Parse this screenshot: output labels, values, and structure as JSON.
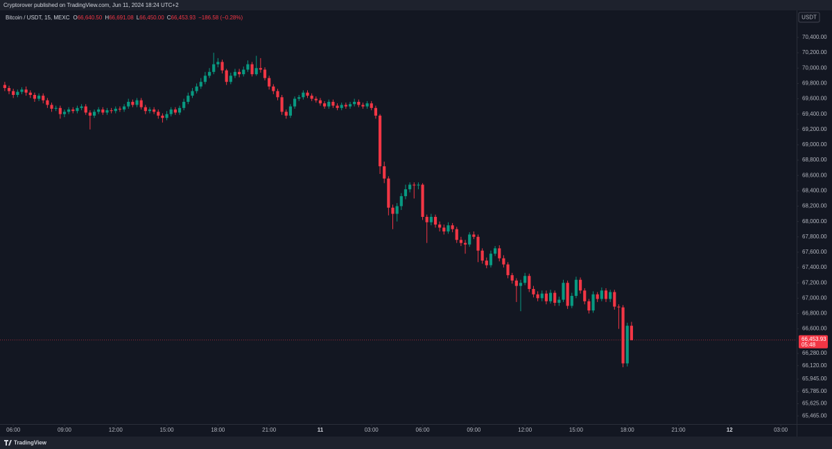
{
  "chart_data": {
    "type": "candlestick",
    "publisher_note": "Cryptorover published on TradingView.com, Jun 11, 2024 18:24 UTC+2",
    "symbol": "Bitcoin / USDT, 15, MEXC",
    "ohlc_legend": [
      {
        "key": "O",
        "value": "66,640.50"
      },
      {
        "key": "H",
        "value": "66,691.08"
      },
      {
        "key": "L",
        "value": "66,450.00"
      },
      {
        "key": "C",
        "value": "66,453.93"
      }
    ],
    "change": "−186.58 (−0.28%)",
    "currency": "USDT",
    "footer": "TradingView",
    "up_color": "#089981",
    "down_color": "#f23645",
    "last_price": {
      "value": 66453.93,
      "label": "66,453.93"
    },
    "countdown": "05:48",
    "xlim": [
      5.22,
      51.93
    ],
    "xticks": [
      {
        "value": 6,
        "label": "06:00"
      },
      {
        "value": 9,
        "label": "09:00"
      },
      {
        "value": 12,
        "label": "12:00"
      },
      {
        "value": 15,
        "label": "15:00"
      },
      {
        "value": 18,
        "label": "18:00"
      },
      {
        "value": 21,
        "label": "21:00"
      },
      11,
      {
        "value": 27,
        "label": "03:00"
      },
      {
        "value": 30,
        "label": "06:00"
      },
      {
        "value": 33,
        "label": "09:00"
      },
      {
        "value": 36,
        "label": "12:00"
      },
      {
        "value": 39,
        "label": "15:00"
      },
      {
        "value": 42,
        "label": "18:00"
      },
      {
        "value": 45,
        "label": "21:00"
      },
      12,
      {
        "value": 51,
        "label": "03:00"
      }
    ],
    "ylim": [
      65359,
      70725
    ],
    "yticks": [
      {
        "value": 70400,
        "label": "70,400.00"
      },
      {
        "value": 70200,
        "label": "70,200.00"
      },
      {
        "value": 70000,
        "label": "70,000.00"
      },
      {
        "value": 69800,
        "label": "69,800.00"
      },
      {
        "value": 69600,
        "label": "69,600.00"
      },
      {
        "value": 69400,
        "label": "69,400.00"
      },
      {
        "value": 69200,
        "label": "69,200.00"
      },
      {
        "value": 69000,
        "label": "69,000.00"
      },
      {
        "value": 68800,
        "label": "68,800.00"
      },
      {
        "value": 68600,
        "label": "68,600.00"
      },
      {
        "value": 68400,
        "label": "68,400.00"
      },
      {
        "value": 68200,
        "label": "68,200.00"
      },
      {
        "value": 68000,
        "label": "68,000.00"
      },
      {
        "value": 67800,
        "label": "67,800.00"
      },
      {
        "value": 67600,
        "label": "67,600.00"
      },
      {
        "value": 67400,
        "label": "67,400.00"
      },
      {
        "value": 67200,
        "label": "67,200.00"
      },
      {
        "value": 67000,
        "label": "67,000.00"
      },
      {
        "value": 66800,
        "label": "66,800.00"
      },
      {
        "value": 66600,
        "label": "66,600.00"
      },
      {
        "value": 66280,
        "label": "66,280.00"
      },
      {
        "value": 66120,
        "label": "66,120.00"
      },
      {
        "value": 65945,
        "label": "65,945.00"
      },
      {
        "value": 65785,
        "label": "65,785.00"
      },
      {
        "value": 65625,
        "label": "65,625.00"
      },
      {
        "value": 65465,
        "label": "65,465.00"
      }
    ],
    "x": [
      5.5,
      5.75,
      6,
      6.25,
      6.5,
      6.75,
      7,
      7.25,
      7.5,
      7.75,
      8,
      8.25,
      8.5,
      8.75,
      9,
      9.25,
      9.5,
      9.75,
      10,
      10.25,
      10.5,
      10.75,
      11,
      11.25,
      11.5,
      11.75,
      12,
      12.25,
      12.5,
      12.75,
      13,
      13.25,
      13.5,
      13.75,
      14,
      14.25,
      14.5,
      14.75,
      15,
      15.25,
      15.5,
      15.75,
      16,
      16.25,
      16.5,
      16.75,
      17,
      17.25,
      17.5,
      17.75,
      18,
      18.25,
      18.5,
      18.75,
      19,
      19.25,
      19.5,
      19.75,
      20,
      20.25,
      20.5,
      20.75,
      21,
      21.25,
      21.5,
      21.75,
      22,
      22.25,
      22.5,
      22.75,
      23,
      23.25,
      23.5,
      23.75,
      24,
      24.25,
      24.5,
      24.75,
      25,
      25.25,
      25.5,
      25.75,
      26,
      26.25,
      26.5,
      26.75,
      27,
      27.25,
      27.5,
      27.75,
      28,
      28.25,
      28.5,
      28.75,
      29,
      29.25,
      29.5,
      29.75,
      30,
      30.25,
      30.5,
      30.75,
      31,
      31.25,
      31.5,
      31.75,
      32,
      32.25,
      32.5,
      32.75,
      33,
      33.25,
      33.5,
      33.75,
      34,
      34.25,
      34.5,
      34.75,
      35,
      35.25,
      35.5,
      35.75,
      36,
      36.25,
      36.5,
      36.75,
      37,
      37.25,
      37.5,
      37.75,
      38,
      38.25,
      38.5,
      38.75,
      39,
      39.25,
      39.5,
      39.75,
      40,
      40.25,
      40.5,
      40.75,
      41,
      41.25,
      41.5,
      41.75,
      42,
      42.25
    ],
    "open": [
      69780,
      69740,
      69700,
      69650,
      69690,
      69720,
      69680,
      69650,
      69600,
      69640,
      69580,
      69520,
      69470,
      69480,
      69400,
      69430,
      69460,
      69440,
      69480,
      69500,
      69420,
      69380,
      69430,
      69460,
      69420,
      69450,
      69440,
      69470,
      69460,
      69500,
      69560,
      69520,
      69580,
      69490,
      69440,
      69460,
      69430,
      69380,
      69350,
      69400,
      69460,
      69420,
      69480,
      69560,
      69640,
      69700,
      69760,
      69820,
      69900,
      69950,
      70050,
      70080,
      69970,
      69820,
      69900,
      69950,
      69920,
      69980,
      70050,
      69920,
      70000,
      69980,
      69870,
      69760,
      69700,
      69620,
      69430,
      69380,
      69500,
      69600,
      69620,
      69680,
      69640,
      69600,
      69580,
      69540,
      69500,
      69560,
      69510,
      69480,
      69520,
      69500,
      69530,
      69560,
      69520,
      69500,
      69540,
      69480,
      69380,
      68720,
      68560,
      68180,
      68100,
      68200,
      68330,
      68420,
      68480,
      68470,
      68480,
      68060,
      67990,
      68060,
      67960,
      67920,
      67870,
      67950,
      67900,
      67760,
      67720,
      67700,
      67830,
      67800,
      67620,
      67490,
      67430,
      67580,
      67650,
      67520,
      67440,
      67300,
      67230,
      67160,
      67200,
      67290,
      67120,
      67050,
      67000,
      67060,
      66960,
      67070,
      66940,
      66980,
      67200,
      66900,
      67030,
      67240,
      67100,
      66960,
      66840,
      67050,
      66990,
      67100,
      66990,
      67080,
      66890,
      66880,
      66150,
      66640.5
    ],
    "high": [
      69820,
      69770,
      69730,
      69720,
      69750,
      69760,
      69710,
      69680,
      69670,
      69670,
      69610,
      69550,
      69510,
      69510,
      69460,
      69490,
      69490,
      69510,
      69530,
      69530,
      69450,
      69460,
      69490,
      69490,
      69480,
      69480,
      69500,
      69500,
      69530,
      69600,
      69590,
      69610,
      69610,
      69520,
      69490,
      69490,
      69460,
      69410,
      69440,
      69490,
      69490,
      69510,
      69600,
      69680,
      69740,
      69800,
      69870,
      69950,
      70000,
      70200,
      70130,
      70110,
      69990,
      69940,
      69990,
      69990,
      70020,
      70100,
      70080,
      70160,
      70130,
      70010,
      69900,
      69790,
      69730,
      69650,
      69460,
      69530,
      69630,
      69650,
      69710,
      69710,
      69670,
      69630,
      69610,
      69570,
      69590,
      69590,
      69540,
      69550,
      69550,
      69560,
      69600,
      69590,
      69550,
      69570,
      69570,
      69510,
      69400,
      68780,
      68590,
      68220,
      68240,
      68370,
      68480,
      68510,
      68510,
      68510,
      68500,
      68090,
      68100,
      68090,
      68000,
      67960,
      67990,
      67980,
      67930,
      67800,
      67760,
      67860,
      67870,
      67830,
      67650,
      67530,
      67620,
      67680,
      67690,
      67560,
      67470,
      67330,
      67260,
      67240,
      67330,
      67320,
      67160,
      67090,
      67100,
      67100,
      67110,
      67100,
      67020,
      67240,
      67230,
      67070,
      67280,
      67270,
      67130,
      66990,
      67090,
      67080,
      67140,
      67130,
      67110,
      67110,
      66920,
      66910,
      66680,
      66691.08
    ],
    "low": [
      69700,
      69660,
      69610,
      69620,
      69660,
      69640,
      69610,
      69560,
      69570,
      69540,
      69480,
      69430,
      69440,
      69340,
      69360,
      69400,
      69410,
      69410,
      69450,
      69390,
      69200,
      69350,
      69400,
      69390,
      69390,
      69410,
      69410,
      69430,
      69430,
      69470,
      69490,
      69490,
      69460,
      69400,
      69410,
      69400,
      69340,
      69290,
      69320,
      69370,
      69390,
      69390,
      69450,
      69530,
      69610,
      69670,
      69730,
      69790,
      69870,
      69920,
      70010,
      69930,
      69780,
      69790,
      69870,
      69880,
      69890,
      69950,
      69890,
      69900,
      69940,
      69840,
      69720,
      69660,
      69580,
      69390,
      69340,
      69350,
      69470,
      69570,
      69590,
      69610,
      69570,
      69550,
      69510,
      69470,
      69470,
      69480,
      69450,
      69450,
      69470,
      69470,
      69500,
      69490,
      69470,
      69470,
      69450,
      69340,
      68620,
      68500,
      68080,
      67900,
      68000,
      68150,
      68290,
      68380,
      68300,
      68420,
      68020,
      67720,
      67950,
      67920,
      67870,
      67830,
      67840,
      67860,
      67720,
      67680,
      67580,
      67670,
      67770,
      67470,
      67450,
      67390,
      67400,
      67550,
      67480,
      67400,
      67260,
      67190,
      66950,
      66830,
      67170,
      67080,
      67010,
      66960,
      66960,
      66920,
      66930,
      66900,
      66900,
      66950,
      66860,
      66870,
      67000,
      67060,
      66920,
      66800,
      66810,
      66950,
      66960,
      66950,
      66950,
      66850,
      66600,
      66100,
      66110,
      66450
    ],
    "close": [
      69740,
      69700,
      69650,
      69690,
      69720,
      69680,
      69650,
      69600,
      69640,
      69580,
      69520,
      69470,
      69480,
      69400,
      69430,
      69460,
      69440,
      69480,
      69500,
      69420,
      69380,
      69430,
      69460,
      69420,
      69450,
      69440,
      69470,
      69460,
      69500,
      69560,
      69520,
      69580,
      69490,
      69440,
      69460,
      69430,
      69380,
      69350,
      69400,
      69460,
      69420,
      69480,
      69560,
      69640,
      69700,
      69760,
      69820,
      69900,
      69950,
      70050,
      70080,
      69970,
      69820,
      69900,
      69950,
      69920,
      69980,
      70050,
      69920,
      70000,
      69980,
      69870,
      69760,
      69700,
      69620,
      69430,
      69380,
      69500,
      69600,
      69620,
      69680,
      69640,
      69600,
      69580,
      69540,
      69500,
      69560,
      69510,
      69480,
      69520,
      69500,
      69530,
      69560,
      69520,
      69500,
      69540,
      69480,
      69380,
      68720,
      68560,
      68180,
      68100,
      68200,
      68330,
      68420,
      68480,
      68470,
      68480,
      68060,
      67990,
      68060,
      67960,
      67920,
      67870,
      67950,
      67900,
      67760,
      67720,
      67700,
      67830,
      67800,
      67620,
      67490,
      67430,
      67580,
      67650,
      67520,
      67440,
      67300,
      67230,
      67160,
      67200,
      67290,
      67120,
      67050,
      67000,
      67060,
      66960,
      67070,
      66940,
      66980,
      67200,
      66900,
      67030,
      67240,
      67100,
      66960,
      66840,
      67050,
      66990,
      67100,
      66990,
      67080,
      66890,
      66880,
      66150,
      66640.5,
      66453.93
    ]
  }
}
